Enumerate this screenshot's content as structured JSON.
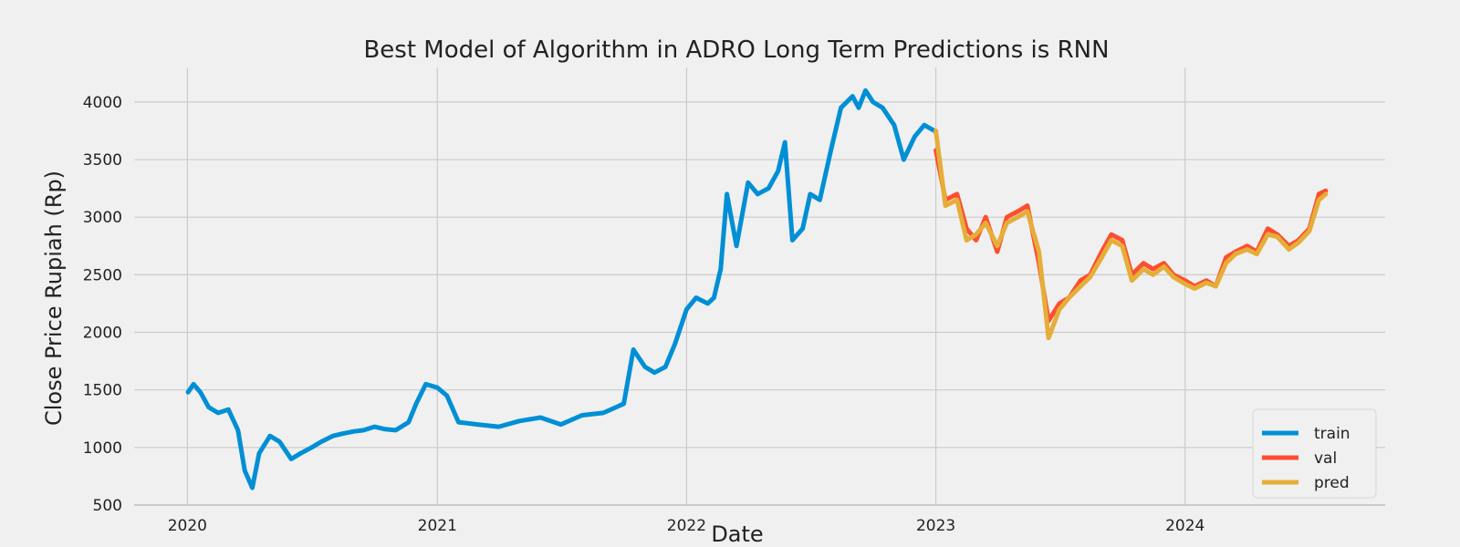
{
  "colors": {
    "background": "#f0f0f0",
    "grid": "#cbcbcb",
    "train": "#008fd5",
    "val": "#fc4f30",
    "pred": "#e5ae38"
  },
  "chart_data": {
    "type": "line",
    "title": "Best Model of Algorithm in ADRO Long Term Predictions is RNN",
    "xlabel": "Date",
    "ylabel": "Close Price Rupiah (Rp)",
    "xlim": [
      "2019-10-15",
      "2024-10-20"
    ],
    "ylim": [
      500,
      4300
    ],
    "x_ticks": [
      "2020-01-01",
      "2021-01-01",
      "2022-01-01",
      "2023-01-01",
      "2024-01-01"
    ],
    "x_tick_labels": [
      "2020",
      "2021",
      "2022",
      "2023",
      "2024"
    ],
    "y_ticks": [
      500,
      1000,
      1500,
      2000,
      2500,
      3000,
      3500,
      4000
    ],
    "grid": true,
    "legend_position": "lower-right",
    "series": [
      {
        "name": "train",
        "color": "#008fd5",
        "x": [
          "2020-01-02",
          "2020-01-10",
          "2020-01-20",
          "2020-02-01",
          "2020-02-15",
          "2020-03-01",
          "2020-03-15",
          "2020-03-25",
          "2020-04-05",
          "2020-04-15",
          "2020-05-01",
          "2020-05-15",
          "2020-06-01",
          "2020-06-15",
          "2020-07-01",
          "2020-07-15",
          "2020-08-01",
          "2020-08-15",
          "2020-09-01",
          "2020-09-15",
          "2020-10-01",
          "2020-10-15",
          "2020-11-01",
          "2020-11-20",
          "2020-12-01",
          "2020-12-15",
          "2021-01-01",
          "2021-01-15",
          "2021-02-01",
          "2021-03-01",
          "2021-04-01",
          "2021-05-01",
          "2021-06-01",
          "2021-07-01",
          "2021-08-01",
          "2021-09-01",
          "2021-09-20",
          "2021-10-01",
          "2021-10-15",
          "2021-11-01",
          "2021-11-15",
          "2021-12-01",
          "2021-12-15",
          "2022-01-01",
          "2022-01-15",
          "2022-02-01",
          "2022-02-10",
          "2022-02-20",
          "2022-03-01",
          "2022-03-15",
          "2022-04-01",
          "2022-04-15",
          "2022-05-01",
          "2022-05-15",
          "2022-05-25",
          "2022-06-05",
          "2022-06-20",
          "2022-07-01",
          "2022-07-15",
          "2022-08-01",
          "2022-08-15",
          "2022-09-01",
          "2022-09-10",
          "2022-09-20",
          "2022-10-01",
          "2022-10-15",
          "2022-11-01",
          "2022-11-15",
          "2022-12-01",
          "2022-12-15",
          "2022-12-30"
        ],
        "y": [
          1480,
          1550,
          1480,
          1350,
          1300,
          1330,
          1150,
          800,
          650,
          950,
          1100,
          1050,
          900,
          950,
          1000,
          1050,
          1100,
          1120,
          1140,
          1150,
          1180,
          1160,
          1150,
          1220,
          1380,
          1550,
          1520,
          1450,
          1220,
          1200,
          1180,
          1230,
          1260,
          1200,
          1280,
          1300,
          1350,
          1380,
          1850,
          1700,
          1650,
          1700,
          1900,
          2200,
          2300,
          2250,
          2300,
          2550,
          3200,
          2750,
          3300,
          3200,
          3250,
          3400,
          3650,
          2800,
          2900,
          3200,
          3150,
          3600,
          3950,
          4050,
          3950,
          4100,
          4000,
          3950,
          3800,
          3500,
          3700,
          3800,
          3750
        ]
      },
      {
        "name": "val",
        "color": "#fc4f30",
        "x": [
          "2023-01-01",
          "2023-01-15",
          "2023-02-01",
          "2023-02-15",
          "2023-03-01",
          "2023-03-15",
          "2023-04-01",
          "2023-04-15",
          "2023-05-01",
          "2023-05-15",
          "2023-06-01",
          "2023-06-15",
          "2023-07-01",
          "2023-07-15",
          "2023-08-01",
          "2023-08-15",
          "2023-09-01",
          "2023-09-15",
          "2023-10-01",
          "2023-10-15",
          "2023-11-01",
          "2023-11-15",
          "2023-12-01",
          "2023-12-15",
          "2024-01-01",
          "2024-01-15",
          "2024-02-01",
          "2024-02-15",
          "2024-03-01",
          "2024-03-15",
          "2024-04-01",
          "2024-04-15",
          "2024-05-01",
          "2024-05-15",
          "2024-06-01",
          "2024-06-15",
          "2024-07-01",
          "2024-07-15",
          "2024-07-25"
        ],
        "y": [
          3580,
          3150,
          3200,
          2900,
          2800,
          3000,
          2700,
          3000,
          3050,
          3100,
          2600,
          2100,
          2250,
          2300,
          2450,
          2500,
          2700,
          2850,
          2800,
          2500,
          2600,
          2550,
          2600,
          2500,
          2450,
          2400,
          2450,
          2400,
          2650,
          2700,
          2750,
          2700,
          2900,
          2850,
          2750,
          2800,
          2900,
          3200,
          3230
        ]
      },
      {
        "name": "pred",
        "color": "#e5ae38",
        "x": [
          "2023-01-01",
          "2023-01-15",
          "2023-02-01",
          "2023-02-15",
          "2023-03-01",
          "2023-03-15",
          "2023-04-01",
          "2023-04-15",
          "2023-05-01",
          "2023-05-15",
          "2023-06-01",
          "2023-06-15",
          "2023-07-01",
          "2023-07-15",
          "2023-08-01",
          "2023-08-15",
          "2023-09-01",
          "2023-09-15",
          "2023-10-01",
          "2023-10-15",
          "2023-11-01",
          "2023-11-15",
          "2023-12-01",
          "2023-12-15",
          "2024-01-01",
          "2024-01-15",
          "2024-02-01",
          "2024-02-15",
          "2024-03-01",
          "2024-03-15",
          "2024-04-01",
          "2024-04-15",
          "2024-05-01",
          "2024-05-15",
          "2024-06-01",
          "2024-06-15",
          "2024-07-01",
          "2024-07-15",
          "2024-07-25"
        ],
        "y": [
          3750,
          3100,
          3150,
          2800,
          2850,
          2950,
          2750,
          2950,
          3000,
          3050,
          2700,
          1950,
          2200,
          2300,
          2400,
          2480,
          2650,
          2800,
          2750,
          2450,
          2550,
          2500,
          2570,
          2480,
          2420,
          2380,
          2430,
          2400,
          2600,
          2680,
          2720,
          2680,
          2850,
          2830,
          2720,
          2780,
          2880,
          3150,
          3200
        ]
      }
    ]
  }
}
